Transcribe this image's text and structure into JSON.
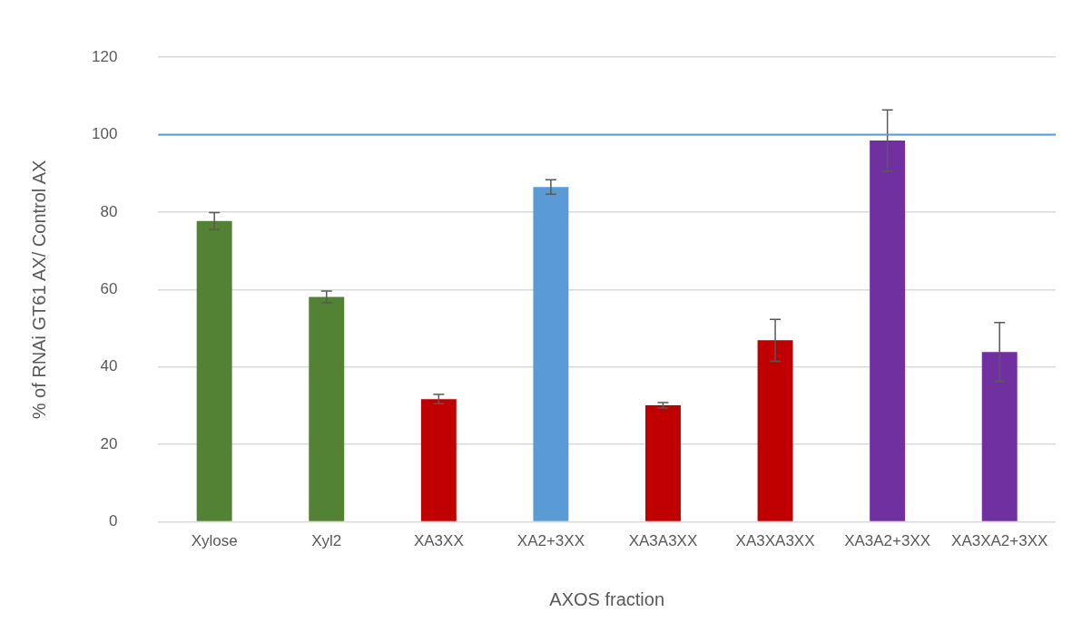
{
  "chart_data": {
    "type": "bar",
    "xlabel": "AXOS fraction",
    "ylabel": "% of RNAi GT61 AX/ Control AX",
    "categories": [
      "Xylose",
      "Xyl2",
      "XA3XX",
      "XA2+3XX",
      "XA3A3XX",
      "XA3XA3XX",
      "XA3A2+3XX",
      "XA3XA2+3XX"
    ],
    "values": [
      77.7,
      58.1,
      31.7,
      86.5,
      30.1,
      46.9,
      98.5,
      43.9
    ],
    "errors": [
      2.2,
      1.5,
      1.2,
      1.9,
      0.7,
      5.4,
      7.9,
      7.6
    ],
    "colors": [
      "#548235",
      "#548235",
      "#c00000",
      "#5b9bd5",
      "#c00000",
      "#c00000",
      "#7030a0",
      "#7030a0"
    ],
    "ylim": [
      0,
      120
    ],
    "yticks": [
      0,
      20,
      40,
      60,
      80,
      100,
      120
    ],
    "grid": "y",
    "legend": false,
    "ref_lines": [
      {
        "axis": "y",
        "value": 100,
        "color": "#5b9bd5",
        "line_style": "solid"
      }
    ]
  }
}
